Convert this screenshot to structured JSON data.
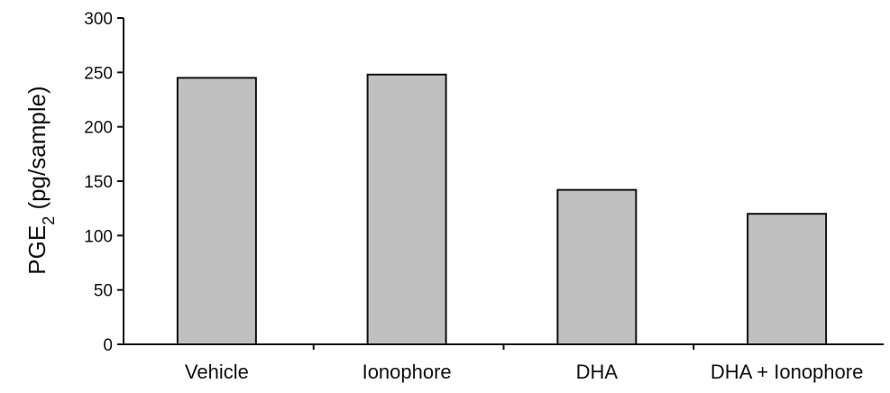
{
  "chart_data": {
    "type": "bar",
    "categories": [
      "Vehicle",
      "Ionophore",
      "DHA",
      "DHA + Ionophore"
    ],
    "values": [
      245,
      248,
      142,
      120
    ],
    "title": "",
    "xlabel": "",
    "ylabel_main": "PGE",
    "ylabel_sub": "2",
    "ylabel_unit": " (pg/sample)",
    "ylim": [
      0,
      300
    ],
    "yticks": [
      0,
      50,
      100,
      150,
      200,
      250,
      300
    ],
    "grid": false,
    "legend": "none",
    "bar_color": "#c0c0c0",
    "bar_edge_color": "#111111"
  }
}
